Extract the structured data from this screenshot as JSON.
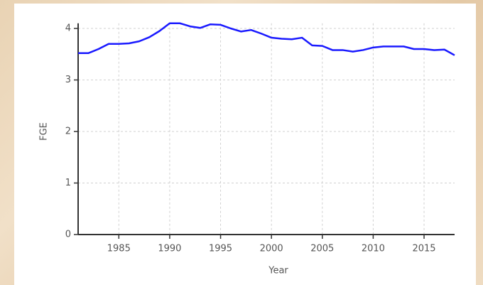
{
  "chart_data": {
    "type": "line",
    "x_label": "Year",
    "y_label": "FGE",
    "x": [
      1981,
      1982,
      1983,
      1984,
      1985,
      1986,
      1987,
      1988,
      1989,
      1990,
      1991,
      1992,
      1993,
      1994,
      1995,
      1996,
      1997,
      1998,
      1999,
      2000,
      2001,
      2002,
      2003,
      2004,
      2005,
      2006,
      2007,
      2008,
      2009,
      2010,
      2011,
      2012,
      2013,
      2014,
      2015,
      2016,
      2017,
      2018
    ],
    "series": [
      {
        "name": "FGE",
        "color": "#1a1aff",
        "values": [
          3.52,
          3.52,
          3.6,
          3.7,
          3.7,
          3.71,
          3.75,
          3.83,
          3.95,
          4.1,
          4.1,
          4.04,
          4.01,
          4.08,
          4.07,
          4.0,
          3.94,
          3.97,
          3.9,
          3.82,
          3.8,
          3.79,
          3.82,
          3.67,
          3.66,
          3.58,
          3.58,
          3.55,
          3.58,
          3.63,
          3.65,
          3.65,
          3.65,
          3.6,
          3.6,
          3.58,
          3.59,
          3.48
        ]
      }
    ],
    "xlim": [
      1981,
      2018
    ],
    "xticks": [
      1985,
      1990,
      1995,
      2000,
      2005,
      2010,
      2015
    ],
    "ylim": [
      0,
      4.1
    ],
    "yticks": [
      0,
      1,
      2,
      3,
      4
    ],
    "grid": true
  }
}
